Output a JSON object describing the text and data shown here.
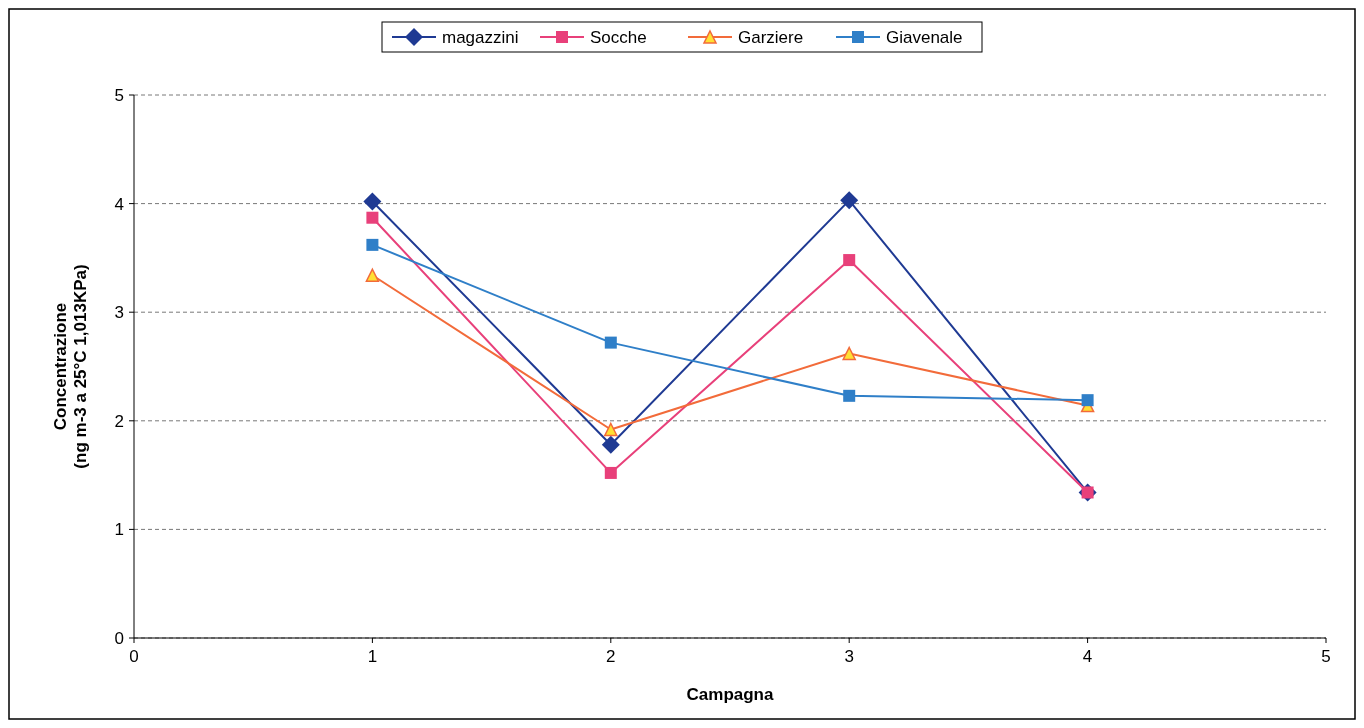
{
  "chart_data": {
    "type": "line",
    "xlabel": "Campagna",
    "ylabel": "Concentrazione\n(ng m-3 a 25°C 1,013KPa)",
    "x": [
      1,
      2,
      3,
      4
    ],
    "xlim": [
      0,
      5
    ],
    "xticks": [
      0,
      1,
      2,
      3,
      4,
      5
    ],
    "ylim": [
      0,
      5
    ],
    "yticks": [
      0,
      1,
      2,
      3,
      4,
      5
    ],
    "grid": "y",
    "legend": "top",
    "series": [
      {
        "name": "magazzini",
        "color": "#1f3a93",
        "marker": "diamond",
        "values": [
          4.02,
          1.78,
          4.03,
          1.34
        ]
      },
      {
        "name": "Socche",
        "color": "#e8407a",
        "marker": "square",
        "values": [
          3.87,
          1.52,
          3.48,
          1.34
        ]
      },
      {
        "name": "Garziere",
        "color": "#f26b3a",
        "marker": "triangle",
        "values": [
          3.34,
          1.92,
          2.62,
          2.14
        ]
      },
      {
        "name": "Giavenale",
        "color": "#2f7fc8",
        "marker": "square",
        "values": [
          3.62,
          2.72,
          2.23,
          2.19
        ]
      }
    ]
  }
}
